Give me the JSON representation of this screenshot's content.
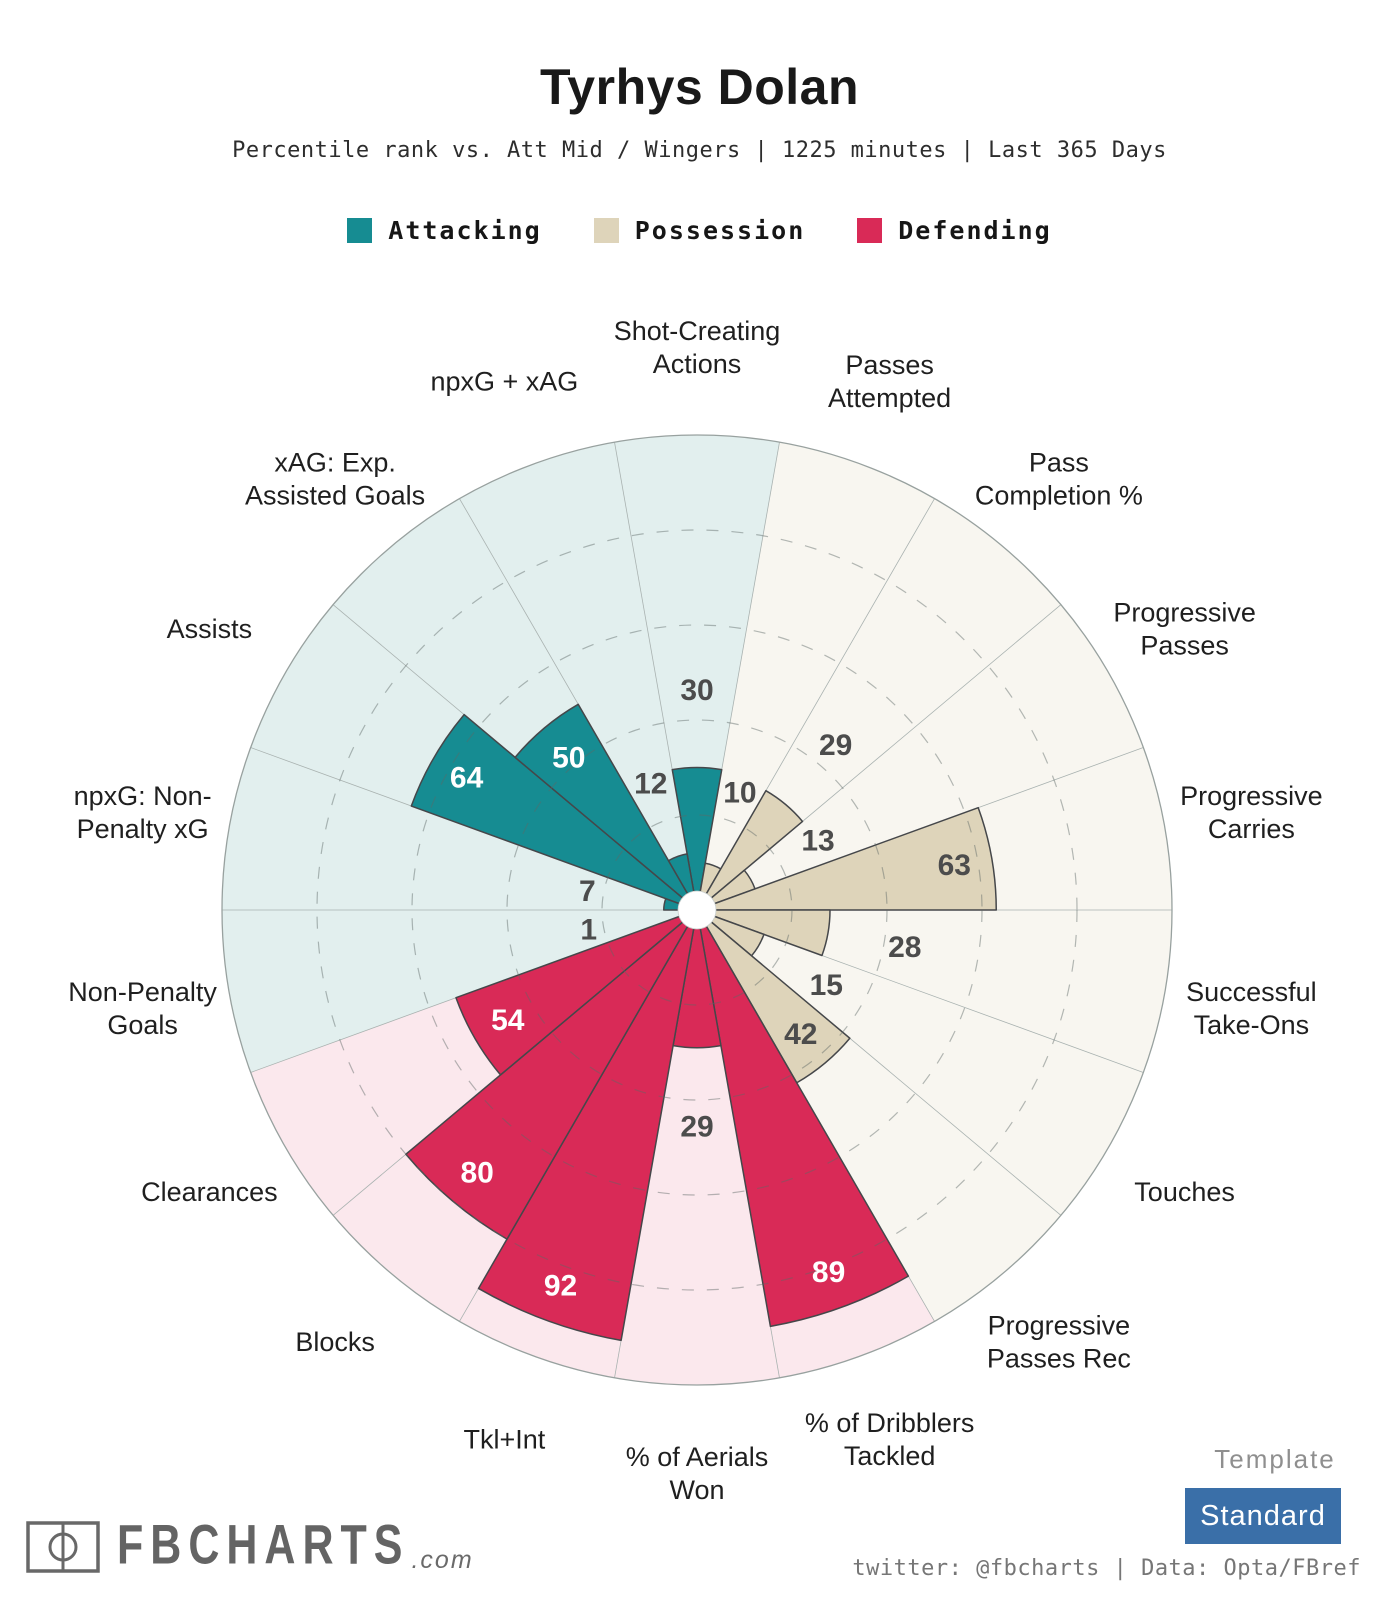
{
  "header": {
    "title": "Tyrhys Dolan",
    "subtitle": "Percentile rank vs. Att Mid / Wingers | 1225 minutes | Last 365 Days"
  },
  "legend": {
    "items": [
      {
        "label": "Attacking",
        "color": "#168c92"
      },
      {
        "label": "Possession",
        "color": "#ded4ba"
      },
      {
        "label": "Defending",
        "color": "#d92a57"
      }
    ]
  },
  "chart_data": {
    "type": "pizza_polar_bar",
    "unit": "percentile",
    "rlim": [
      0,
      100
    ],
    "gridlines": [
      20,
      40,
      60,
      80
    ],
    "start": "top",
    "direction": "clockwise",
    "slices": [
      {
        "label": "Shot-Creating\nActions",
        "value": 30,
        "group": "Attacking"
      },
      {
        "label": "Passes\nAttempted",
        "value": 10,
        "group": "Possession"
      },
      {
        "label": "Pass\nCompletion %",
        "value": 29,
        "group": "Possession"
      },
      {
        "label": "Progressive\nPasses",
        "value": 13,
        "group": "Possession"
      },
      {
        "label": "Progressive\nCarries",
        "value": 63,
        "group": "Possession"
      },
      {
        "label": "Successful\nTake-Ons",
        "value": 28,
        "group": "Possession"
      },
      {
        "label": "Touches",
        "value": 15,
        "group": "Possession"
      },
      {
        "label": "Progressive\nPasses Rec",
        "value": 42,
        "group": "Possession"
      },
      {
        "label": "% of Dribblers\nTackled",
        "value": 89,
        "group": "Defending"
      },
      {
        "label": "% of Aerials\nWon",
        "value": 29,
        "group": "Defending"
      },
      {
        "label": "Tkl+Int",
        "value": 92,
        "group": "Defending"
      },
      {
        "label": "Blocks",
        "value": 80,
        "group": "Defending"
      },
      {
        "label": "Clearances",
        "value": 54,
        "group": "Defending"
      },
      {
        "label": "Non-Penalty\nGoals",
        "value": 1,
        "group": "Attacking"
      },
      {
        "label": "npxG: Non-\nPenalty xG",
        "value": 7,
        "group": "Attacking"
      },
      {
        "label": "Assists",
        "value": 64,
        "group": "Attacking"
      },
      {
        "label": "xAG: Exp.\nAssisted Goals",
        "value": 50,
        "group": "Attacking"
      },
      {
        "label": "npxG + xAG",
        "value": 12,
        "group": "Attacking"
      }
    ],
    "groups": {
      "Attacking": {
        "bar": "#168c92",
        "bg": "#e2efee"
      },
      "Possession": {
        "bar": "#ded4ba",
        "bg": "#f8f6f0"
      },
      "Defending": {
        "bar": "#d92a57",
        "bg": "#fbe8ed"
      }
    }
  },
  "footer": {
    "brand": {
      "name": "FBCHARTS",
      "tld": ".com"
    },
    "template_label": "Template",
    "template_value": "Standard",
    "template_button_color": "#3a6fa8",
    "credit": "twitter: @fbcharts | Data: Opta/FBref"
  }
}
